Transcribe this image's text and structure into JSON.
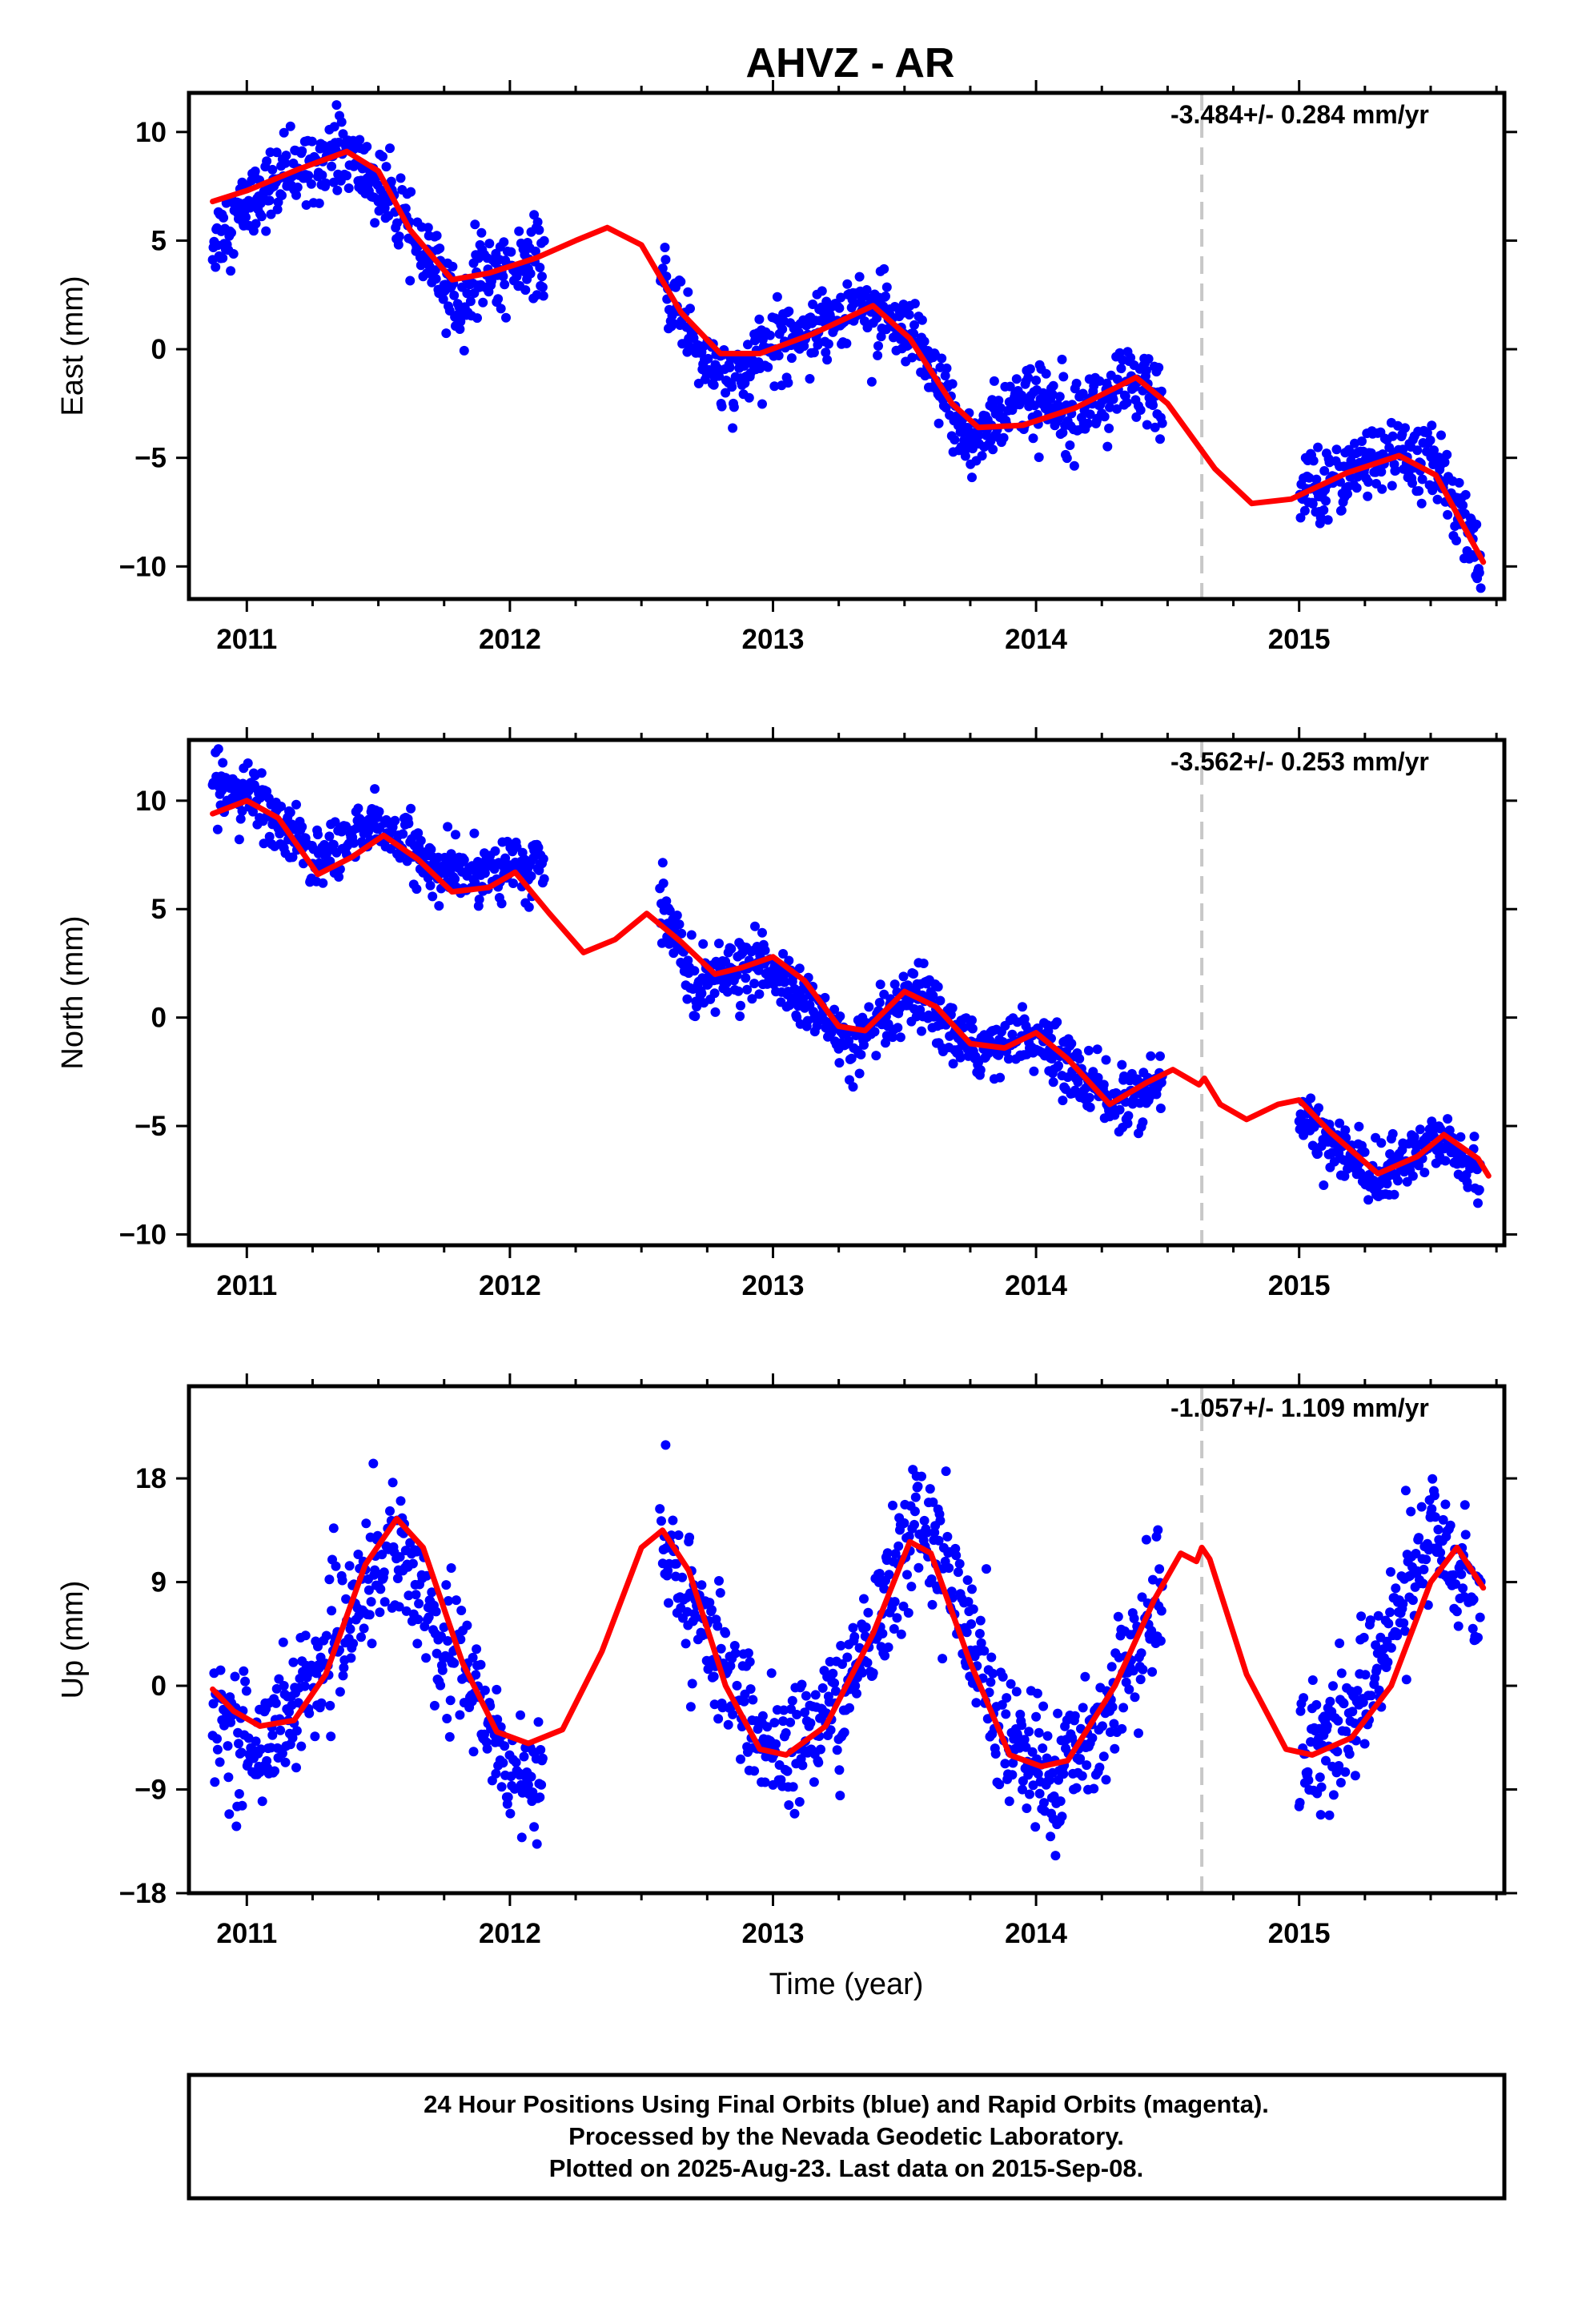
{
  "title": "AHVZ - AR",
  "xlabel": "Time (year)",
  "footer": {
    "line1": "24 Hour Positions Using Final Orbits (blue) and Rapid Orbits (magenta).",
    "line2": "Processed by the Nevada Geodetic Laboratory.",
    "line3": "Plotted on 2025-Aug-23. Last data on 2015-Sep-08."
  },
  "colors": {
    "final_orbits": "#0000ff",
    "rapid_orbits": "#ff00ff",
    "model_fit": "#ff0000",
    "equipment_change_line": "#c8c8c8"
  },
  "chart_data": [
    {
      "type": "scatter",
      "component": "East",
      "ylabel": "East (mm)",
      "rate_label": "-3.484+/- 0.284 mm/yr",
      "xlim": [
        2010.78,
        2015.78
      ],
      "ylim": [
        -11.5,
        11.8
      ],
      "x_ticks": [
        2011,
        2012,
        2013,
        2014,
        2015
      ],
      "x_tick_labels": [
        "2011",
        "2012",
        "2013",
        "2014",
        "2015"
      ],
      "y_ticks": [
        -10,
        -5,
        0,
        5,
        10
      ],
      "y_tick_labels": [
        "−10",
        "−5",
        "0",
        "5",
        "10"
      ],
      "event_line_x": 2014.63,
      "series": [
        {
          "kind": "observations",
          "data_spans": [
            [
              2010.87,
              2012.13
            ],
            [
              2012.57,
              2014.48
            ],
            [
              2015.0,
              2015.69
            ]
          ],
          "noise_mm": 1.0,
          "anchors": [
            [
              2010.87,
              5.0
            ],
            [
              2011.05,
              7.2
            ],
            [
              2011.35,
              9.3
            ],
            [
              2011.5,
              7.5
            ],
            [
              2011.65,
              4.8
            ],
            [
              2011.8,
              2.0
            ],
            [
              2011.9,
              3.5
            ],
            [
              2012.13,
              4.0
            ],
            [
              2012.57,
              3.2
            ],
            [
              2012.75,
              -0.5
            ],
            [
              2012.85,
              -1.8
            ],
            [
              2013.0,
              0.3
            ],
            [
              2013.35,
              2.2
            ],
            [
              2013.55,
              0.0
            ],
            [
              2013.75,
              -4.5
            ],
            [
              2013.9,
              -2.5
            ],
            [
              2014.2,
              -2.5
            ],
            [
              2014.4,
              -1.5
            ],
            [
              2014.48,
              -3.0
            ],
            [
              2015.0,
              -6.5
            ],
            [
              2015.35,
              -4.8
            ],
            [
              2015.55,
              -5.5
            ],
            [
              2015.69,
              -10.5
            ]
          ]
        },
        {
          "kind": "model",
          "points": [
            [
              2010.87,
              6.8
            ],
            [
              2011.0,
              7.3
            ],
            [
              2011.2,
              8.3
            ],
            [
              2011.38,
              9.1
            ],
            [
              2011.5,
              8.2
            ],
            [
              2011.62,
              5.5
            ],
            [
              2011.78,
              3.2
            ],
            [
              2011.92,
              3.5
            ],
            [
              2012.1,
              4.2
            ],
            [
              2012.25,
              5.0
            ],
            [
              2012.37,
              5.6
            ],
            [
              2012.5,
              4.8
            ],
            [
              2012.65,
              1.7
            ],
            [
              2012.8,
              -0.2
            ],
            [
              2012.95,
              -0.2
            ],
            [
              2013.15,
              0.7
            ],
            [
              2013.38,
              2.0
            ],
            [
              2013.52,
              0.5
            ],
            [
              2013.68,
              -2.5
            ],
            [
              2013.78,
              -3.6
            ],
            [
              2013.95,
              -3.5
            ],
            [
              2014.15,
              -2.7
            ],
            [
              2014.38,
              -1.3
            ],
            [
              2014.5,
              -2.5
            ],
            [
              2014.68,
              -5.5
            ],
            [
              2014.82,
              -7.1
            ],
            [
              2014.97,
              -6.9
            ],
            [
              2015.18,
              -5.7
            ],
            [
              2015.38,
              -4.9
            ],
            [
              2015.52,
              -5.8
            ],
            [
              2015.7,
              -9.8
            ]
          ]
        }
      ]
    },
    {
      "type": "scatter",
      "component": "North",
      "ylabel": "North (mm)",
      "rate_label": "-3.562+/- 0.253 mm/yr",
      "xlim": [
        2010.78,
        2015.78
      ],
      "ylim": [
        -10.5,
        12.8
      ],
      "x_ticks": [
        2011,
        2012,
        2013,
        2014,
        2015
      ],
      "x_tick_labels": [
        "2011",
        "2012",
        "2013",
        "2014",
        "2015"
      ],
      "y_ticks": [
        -10,
        -5,
        0,
        5,
        10
      ],
      "y_tick_labels": [
        "−10",
        "−5",
        "0",
        "5",
        "10"
      ],
      "event_line_x": 2014.63,
      "series": [
        {
          "kind": "observations",
          "data_spans": [
            [
              2010.87,
              2012.13
            ],
            [
              2012.57,
              2014.48
            ],
            [
              2015.0,
              2015.69
            ]
          ],
          "noise_mm": 0.8,
          "anchors": [
            [
              2010.87,
              10.8
            ],
            [
              2011.05,
              10.0
            ],
            [
              2011.25,
              7.3
            ],
            [
              2011.5,
              9.0
            ],
            [
              2011.75,
              6.5
            ],
            [
              2012.0,
              7.0
            ],
            [
              2012.13,
              6.8
            ],
            [
              2012.57,
              5.5
            ],
            [
              2012.7,
              1.5
            ],
            [
              2012.95,
              2.5
            ],
            [
              2013.1,
              1.0
            ],
            [
              2013.3,
              -1.5
            ],
            [
              2013.55,
              1.0
            ],
            [
              2013.75,
              -1.5
            ],
            [
              2013.95,
              -0.8
            ],
            [
              2014.1,
              -2.0
            ],
            [
              2014.3,
              -4.0
            ],
            [
              2014.48,
              -3.2
            ],
            [
              2015.0,
              -4.5
            ],
            [
              2015.3,
              -7.5
            ],
            [
              2015.55,
              -5.5
            ],
            [
              2015.69,
              -7.5
            ]
          ]
        },
        {
          "kind": "model",
          "points": [
            [
              2010.87,
              9.4
            ],
            [
              2011.0,
              10.0
            ],
            [
              2011.12,
              9.2
            ],
            [
              2011.27,
              6.6
            ],
            [
              2011.4,
              7.4
            ],
            [
              2011.52,
              8.4
            ],
            [
              2011.65,
              7.3
            ],
            [
              2011.78,
              5.8
            ],
            [
              2011.92,
              6.0
            ],
            [
              2012.02,
              6.7
            ],
            [
              2012.15,
              4.8
            ],
            [
              2012.28,
              3.0
            ],
            [
              2012.4,
              3.6
            ],
            [
              2012.52,
              4.8
            ],
            [
              2012.65,
              3.5
            ],
            [
              2012.78,
              2.0
            ],
            [
              2012.88,
              2.3
            ],
            [
              2013.0,
              2.8
            ],
            [
              2013.12,
              1.7
            ],
            [
              2013.25,
              -0.4
            ],
            [
              2013.35,
              -0.6
            ],
            [
              2013.5,
              1.2
            ],
            [
              2013.62,
              0.5
            ],
            [
              2013.75,
              -1.2
            ],
            [
              2013.88,
              -1.4
            ],
            [
              2014.0,
              -0.7
            ],
            [
              2014.12,
              -1.9
            ],
            [
              2014.28,
              -4.0
            ],
            [
              2014.42,
              -3.0
            ],
            [
              2014.52,
              -2.4
            ],
            [
              2014.62,
              -3.1
            ],
            [
              2014.64,
              -2.8
            ],
            [
              2014.7,
              -4.0
            ],
            [
              2014.8,
              -4.7
            ],
            [
              2014.92,
              -4.0
            ],
            [
              2015.0,
              -3.8
            ],
            [
              2015.12,
              -5.3
            ],
            [
              2015.3,
              -7.2
            ],
            [
              2015.45,
              -6.4
            ],
            [
              2015.55,
              -5.4
            ],
            [
              2015.68,
              -6.5
            ],
            [
              2015.72,
              -7.3
            ]
          ]
        }
      ]
    },
    {
      "type": "scatter",
      "component": "Up",
      "ylabel": "Up (mm)",
      "rate_label": "-1.057+/- 1.109 mm/yr",
      "xlim": [
        2010.78,
        2015.78
      ],
      "ylim": [
        -18,
        26
      ],
      "x_ticks": [
        2011,
        2012,
        2013,
        2014,
        2015
      ],
      "x_tick_labels": [
        "2011",
        "2012",
        "2013",
        "2014",
        "2015"
      ],
      "y_ticks": [
        -18,
        -9,
        0,
        9,
        18
      ],
      "y_tick_labels": [
        "−18",
        "−9",
        "0",
        "9",
        "18"
      ],
      "event_line_x": 2014.63,
      "series": [
        {
          "kind": "observations",
          "data_spans": [
            [
              2010.87,
              2012.13
            ],
            [
              2012.57,
              2014.48
            ],
            [
              2015.0,
              2015.69
            ]
          ],
          "noise_mm": 3.2,
          "anchors": [
            [
              2010.87,
              -2.5
            ],
            [
              2011.05,
              -5.5
            ],
            [
              2011.3,
              2.0
            ],
            [
              2011.55,
              12.5
            ],
            [
              2011.8,
              2.5
            ],
            [
              2012.0,
              -7.0
            ],
            [
              2012.13,
              -8.0
            ],
            [
              2012.57,
              12.0
            ],
            [
              2012.75,
              5.0
            ],
            [
              2012.9,
              -3.0
            ],
            [
              2013.05,
              -6.5
            ],
            [
              2013.3,
              0.0
            ],
            [
              2013.55,
              15.0
            ],
            [
              2013.7,
              8.0
            ],
            [
              2013.85,
              -3.0
            ],
            [
              2014.05,
              -9.0
            ],
            [
              2014.25,
              -3.0
            ],
            [
              2014.48,
              8.0
            ],
            [
              2015.0,
              -6.0
            ],
            [
              2015.2,
              -3.0
            ],
            [
              2015.5,
              13.0
            ],
            [
              2015.69,
              8.0
            ]
          ]
        },
        {
          "kind": "model",
          "points": [
            [
              2010.87,
              -0.3
            ],
            [
              2010.95,
              -2.2
            ],
            [
              2011.05,
              -3.5
            ],
            [
              2011.18,
              -3.0
            ],
            [
              2011.3,
              1.0
            ],
            [
              2011.45,
              10.5
            ],
            [
              2011.57,
              14.5
            ],
            [
              2011.67,
              12.0
            ],
            [
              2011.82,
              2.0
            ],
            [
              2011.95,
              -4.0
            ],
            [
              2012.07,
              -5.0
            ],
            [
              2012.2,
              -3.8
            ],
            [
              2012.35,
              3.0
            ],
            [
              2012.5,
              12.0
            ],
            [
              2012.58,
              13.5
            ],
            [
              2012.68,
              10.0
            ],
            [
              2012.82,
              0.0
            ],
            [
              2012.95,
              -5.5
            ],
            [
              2013.05,
              -6.0
            ],
            [
              2013.2,
              -3.5
            ],
            [
              2013.38,
              4.5
            ],
            [
              2013.52,
              12.5
            ],
            [
              2013.6,
              11.5
            ],
            [
              2013.75,
              2.0
            ],
            [
              2013.9,
              -6.0
            ],
            [
              2014.02,
              -7.0
            ],
            [
              2014.12,
              -6.5
            ],
            [
              2014.3,
              0.0
            ],
            [
              2014.45,
              7.5
            ],
            [
              2014.55,
              11.5
            ],
            [
              2014.61,
              10.8
            ],
            [
              2014.63,
              12.0
            ],
            [
              2014.66,
              11.0
            ],
            [
              2014.8,
              1.0
            ],
            [
              2014.95,
              -5.5
            ],
            [
              2015.05,
              -6.0
            ],
            [
              2015.2,
              -4.5
            ],
            [
              2015.35,
              0.0
            ],
            [
              2015.5,
              9.0
            ],
            [
              2015.6,
              12.0
            ],
            [
              2015.7,
              8.5
            ]
          ]
        }
      ]
    }
  ]
}
